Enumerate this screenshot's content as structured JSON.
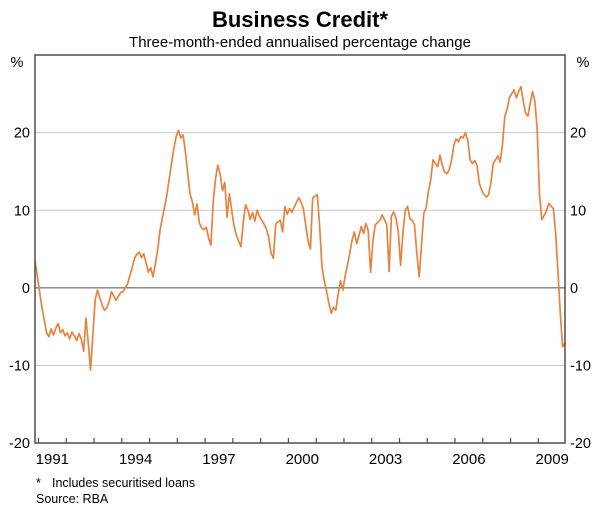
{
  "header": {
    "title": "Business Credit*",
    "subtitle": "Three-month-ended annualised percentage change"
  },
  "footer": {
    "footnote_marker": "*",
    "footnote_text": "Includes securitised loans",
    "source": "Source: RBA"
  },
  "chart_data": {
    "type": "line",
    "title": "Business Credit*",
    "subtitle": "Three-month-ended annualised percentage change",
    "ylabel": "%",
    "ylabel_right": "%",
    "ylim": [
      -20,
      30
    ],
    "yticks": [
      20,
      10,
      0,
      -10,
      -20
    ],
    "grid": "horizontal",
    "legend": "none",
    "xlim": [
      1990.875,
      2009.96
    ],
    "x_year_tick_first": 1991,
    "x_year_tick_last": 2009,
    "x_year_labels": [
      1991,
      1994,
      1997,
      2000,
      2003,
      2006,
      2009
    ],
    "line_color": "#E8823E",
    "grid_color": "#c9c9c9",
    "zero_line_color": "#7f7f7f",
    "frame_color": "#4d4d4d",
    "series": [
      {
        "name": "Business credit, three-month-ended annualised percentage change",
        "frequency": "monthly",
        "start": {
          "year": 1990,
          "month": 11
        },
        "values": [
          3.5,
          1.5,
          -0.5,
          -2.5,
          -4.2,
          -5.8,
          -6.3,
          -5.3,
          -6.1,
          -5.2,
          -4.6,
          -5.8,
          -5.4,
          -6.2,
          -5.8,
          -6.6,
          -5.7,
          -6.2,
          -6.8,
          -5.9,
          -6.6,
          -8.2,
          -3.9,
          -7.0,
          -10.6,
          -6.0,
          -1.5,
          -0.3,
          -1.3,
          -2.2,
          -2.9,
          -2.6,
          -1.8,
          -0.5,
          -1.0,
          -1.6,
          -1.1,
          -0.6,
          -0.5,
          0.0,
          0.5,
          1.6,
          2.6,
          3.8,
          4.3,
          4.6,
          3.9,
          4.4,
          3.2,
          2.0,
          2.6,
          1.4,
          3.0,
          4.9,
          7.4,
          9.0,
          10.4,
          12.0,
          14.0,
          16.0,
          18.0,
          19.5,
          20.3,
          19.3,
          19.7,
          17.5,
          14.8,
          12.0,
          11.1,
          9.4,
          10.8,
          8.4,
          7.7,
          7.5,
          7.8,
          6.4,
          5.5,
          11.1,
          14.0,
          15.8,
          14.7,
          12.5,
          13.6,
          9.1,
          12.1,
          10.0,
          8.0,
          6.8,
          6.0,
          5.3,
          8.5,
          10.7,
          10.0,
          8.8,
          9.7,
          8.6,
          10.0,
          9.2,
          8.7,
          8.2,
          7.6,
          6.5,
          4.5,
          3.8,
          8.2,
          8.5,
          8.7,
          7.2,
          10.5,
          9.5,
          10.2,
          9.7,
          10.4,
          11.0,
          11.6,
          11.0,
          10.2,
          8.0,
          6.0,
          5.0,
          11.6,
          11.8,
          12.0,
          8.0,
          2.7,
          0.9,
          -0.5,
          -2.0,
          -3.3,
          -2.5,
          -2.9,
          -0.8,
          0.9,
          -0.3,
          1.5,
          2.9,
          4.4,
          6.1,
          7.2,
          5.7,
          6.7,
          7.9,
          7.0,
          8.3,
          7.4,
          2.0,
          6.0,
          8.1,
          8.4,
          8.7,
          9.4,
          8.8,
          8.1,
          2.1,
          9.2,
          9.8,
          9.0,
          7.2,
          2.9,
          7.2,
          10.0,
          10.5,
          8.9,
          8.7,
          8.1,
          4.5,
          1.4,
          5.5,
          9.6,
          10.3,
          12.4,
          13.9,
          16.5,
          16.0,
          15.6,
          17.1,
          15.8,
          14.9,
          14.7,
          15.2,
          16.5,
          18.4,
          19.2,
          18.8,
          19.5,
          19.3,
          20.0,
          19.0,
          16.5,
          16.0,
          16.4,
          15.8,
          13.5,
          12.6,
          12.0,
          11.7,
          12.0,
          13.5,
          16.0,
          16.5,
          17.0,
          16.2,
          18.5,
          22.1,
          23.0,
          24.5,
          25.0,
          25.5,
          24.5,
          25.3,
          25.9,
          24.0,
          22.5,
          22.1,
          23.8,
          25.3,
          24.0,
          20.4,
          12.0,
          8.8,
          9.3,
          9.9,
          10.9,
          10.5,
          10.2,
          7.0,
          2.0,
          -3.3,
          -7.6,
          -7.1
        ]
      }
    ]
  }
}
